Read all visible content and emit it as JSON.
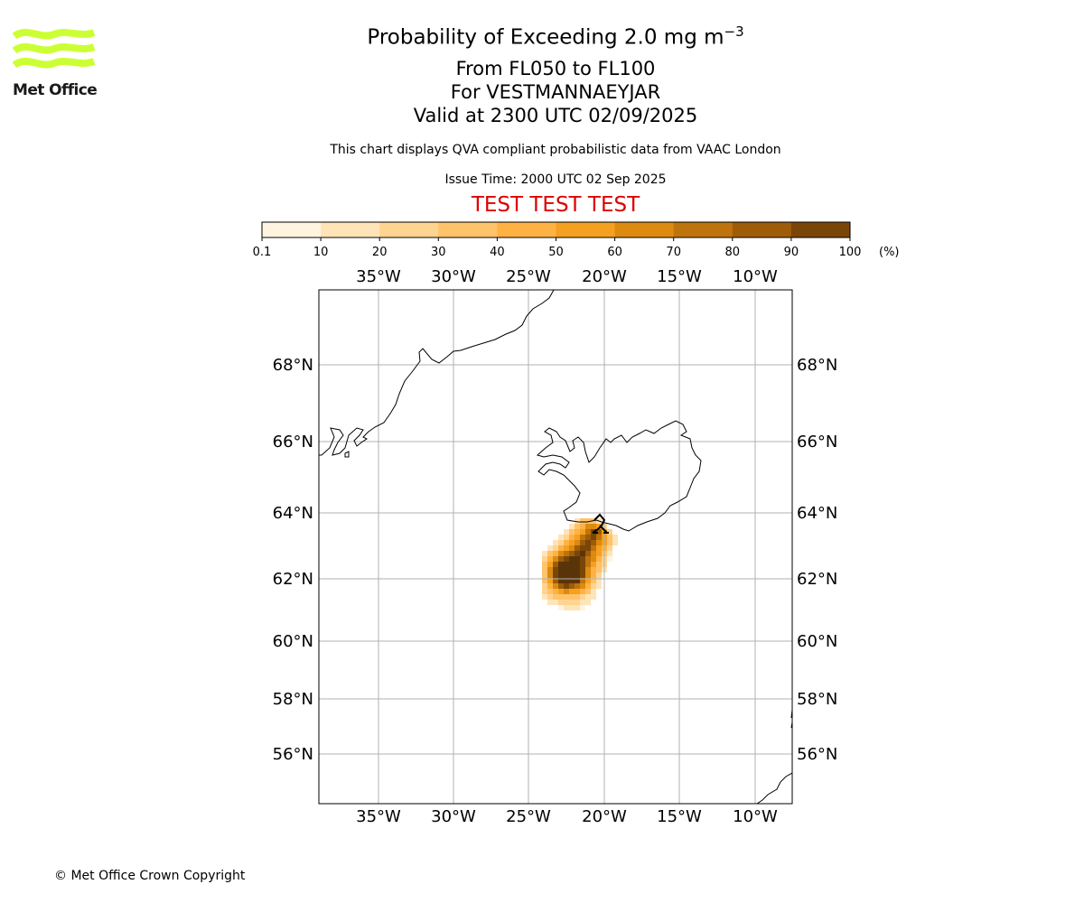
{
  "logo": {
    "text": "Met Office",
    "color": "#ccff33"
  },
  "header": {
    "title_prefix": "Probability of Exceeding 2.0 mg m",
    "title_exponent": "−3",
    "line2": "From FL050 to FL100",
    "line3": "For VESTMANNAEYJAR",
    "line4": "Valid at 2300 UTC 02/09/2025",
    "description": "This chart displays QVA compliant probabilistic data from VAAC London",
    "issue_time": "Issue Time: 2000 UTC 02 Sep 2025",
    "test_banner": "TEST TEST TEST",
    "test_color": "#dd0000"
  },
  "colorbar": {
    "tick_labels": [
      "0.1",
      "10",
      "20",
      "30",
      "40",
      "50",
      "60",
      "70",
      "80",
      "90",
      "100"
    ],
    "unit": "(%)",
    "colors": [
      "#fff4e0",
      "#ffe4b8",
      "#ffd491",
      "#ffc36a",
      "#ffb244",
      "#f5a020",
      "#dc8a10",
      "#bf730c",
      "#9e5c08",
      "#7a4608",
      "#5a3409"
    ]
  },
  "map": {
    "lon_labels": [
      "35°W",
      "30°W",
      "25°W",
      "20°W",
      "15°W",
      "10°W"
    ],
    "lat_labels": [
      "68°N",
      "66°N",
      "64°N",
      "62°N",
      "60°N",
      "58°N",
      "56°N"
    ],
    "grid": true,
    "source_location": "Vestmannaeyjar"
  },
  "footer": {
    "copyright": "© Met Office Crown Copyright"
  }
}
